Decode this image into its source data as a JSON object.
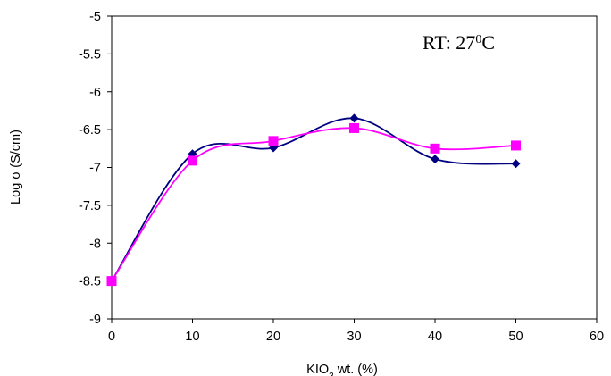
{
  "chart_data": {
    "type": "line",
    "title": "",
    "xlabel": "KIO3 wt. (%)",
    "xlabel_parts": {
      "main": "KIO",
      "sub": "3",
      "rest": " wt. (%)"
    },
    "ylabel": "Log σ (S/cm)",
    "xlim": [
      0,
      60
    ],
    "ylim": [
      -9,
      -5
    ],
    "xticks": [
      0,
      10,
      20,
      30,
      40,
      50,
      60
    ],
    "yticks": [
      -9,
      -8.5,
      -8,
      -7.5,
      -7,
      -6.5,
      -6,
      -5.5,
      -5
    ],
    "grid": false,
    "legend": "none",
    "series": [
      {
        "marker": "diamond",
        "color": "#000080",
        "x": [
          0,
          10,
          20,
          30,
          40,
          50
        ],
        "y": [
          -8.5,
          -6.82,
          -6.74,
          -6.35,
          -6.89,
          -6.95
        ]
      },
      {
        "marker": "square",
        "color": "#ff00ff",
        "x": [
          0,
          10,
          20,
          30,
          40,
          50
        ],
        "y": [
          -8.5,
          -6.91,
          -6.65,
          -6.48,
          -6.75,
          -6.71
        ]
      }
    ],
    "annotation": {
      "main": "RT: 27",
      "sup": "0",
      "rest": "C"
    }
  }
}
